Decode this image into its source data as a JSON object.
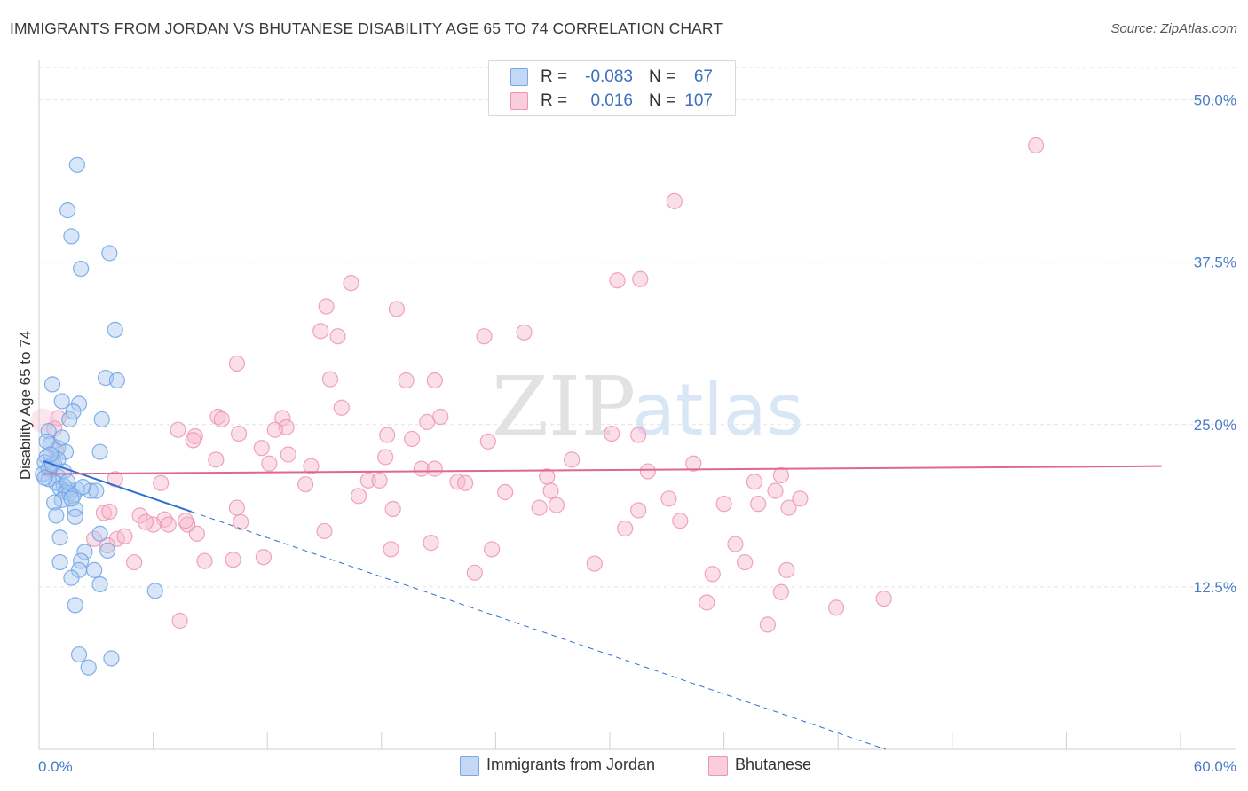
{
  "header": {
    "title": "IMMIGRANTS FROM JORDAN VS BHUTANESE DISABILITY AGE 65 TO 74 CORRELATION CHART",
    "source": "Source: ZipAtlas.com"
  },
  "legend_top": {
    "rows": [
      {
        "r_label": "R =",
        "r_value": "-0.083",
        "n_label": "N =",
        "n_value": "67",
        "color": "#a9c8f0"
      },
      {
        "r_label": "R =",
        "r_value": "0.016",
        "n_label": "N =",
        "n_value": "107",
        "color": "#f6b8cb"
      }
    ]
  },
  "legend_bottom": [
    {
      "label": "Immigrants from Jordan",
      "color": "#a9c8f0"
    },
    {
      "label": "Bhutanese",
      "color": "#f6b8cb"
    }
  ],
  "watermark": {
    "zip": "ZIP",
    "atlas": "atlas"
  },
  "chart_data": {
    "type": "scatter",
    "title": "IMMIGRANTS FROM JORDAN VS BHUTANESE DISABILITY AGE 65 TO 74 CORRELATION CHART",
    "xlabel": "",
    "ylabel": "Disability Age 65 to 74",
    "xlim": [
      0,
      60
    ],
    "ylim": [
      0,
      52.5
    ],
    "x_tick_labels": {
      "min": "0.0%",
      "max": "60.0%"
    },
    "y_ticks": [
      {
        "value": 12.5,
        "label": "12.5%"
      },
      {
        "value": 25,
        "label": "25.0%"
      },
      {
        "value": 37.5,
        "label": "37.5%"
      },
      {
        "value": 50,
        "label": "50.0%"
      }
    ],
    "grid": true,
    "series": [
      {
        "name": "Immigrants from Jordan",
        "color": "#6fa3e6",
        "fill": "#a9c8f0",
        "line_color": "#2e6fd1",
        "R": -0.083,
        "N": 67,
        "trend": {
          "x_start": 0.2,
          "y_start": 22.2,
          "x_solid_end": 8.0,
          "y_solid_end": 18.3,
          "x_dash_end": 44.5,
          "y_dash_end": 0.0
        },
        "points": [
          [
            2.0,
            45.0
          ],
          [
            1.5,
            41.5
          ],
          [
            1.7,
            39.5
          ],
          [
            3.7,
            38.2
          ],
          [
            2.2,
            37.0
          ],
          [
            4.0,
            32.3
          ],
          [
            3.5,
            28.6
          ],
          [
            4.1,
            28.4
          ],
          [
            0.7,
            28.1
          ],
          [
            1.2,
            26.8
          ],
          [
            2.1,
            26.6
          ],
          [
            1.6,
            25.4
          ],
          [
            3.3,
            25.4
          ],
          [
            1.8,
            26.0
          ],
          [
            0.5,
            24.5
          ],
          [
            0.6,
            23.5
          ],
          [
            1.0,
            23.2
          ],
          [
            3.2,
            22.9
          ],
          [
            0.4,
            22.5
          ],
          [
            0.8,
            22.0
          ],
          [
            0.3,
            22.1
          ],
          [
            0.6,
            21.7
          ],
          [
            0.2,
            21.2
          ],
          [
            0.5,
            21.6
          ],
          [
            1.0,
            21.0
          ],
          [
            0.9,
            20.5
          ],
          [
            1.3,
            20.3
          ],
          [
            1.5,
            20.0
          ],
          [
            1.1,
            20.1
          ],
          [
            2.0,
            20.0
          ],
          [
            1.4,
            19.8
          ],
          [
            1.6,
            19.7
          ],
          [
            1.8,
            19.5
          ],
          [
            1.2,
            19.2
          ],
          [
            0.8,
            19.0
          ],
          [
            2.7,
            19.9
          ],
          [
            3.0,
            19.9
          ],
          [
            1.9,
            18.5
          ],
          [
            0.9,
            18.0
          ],
          [
            1.9,
            17.9
          ],
          [
            3.2,
            16.6
          ],
          [
            1.1,
            16.3
          ],
          [
            2.4,
            15.2
          ],
          [
            3.6,
            15.3
          ],
          [
            1.1,
            14.4
          ],
          [
            2.2,
            14.5
          ],
          [
            2.1,
            13.8
          ],
          [
            2.9,
            13.8
          ],
          [
            1.7,
            13.2
          ],
          [
            3.2,
            12.7
          ],
          [
            6.1,
            12.2
          ],
          [
            1.9,
            11.1
          ],
          [
            2.1,
            7.3
          ],
          [
            3.8,
            7.0
          ],
          [
            2.6,
            6.3
          ],
          [
            0.5,
            20.8
          ],
          [
            1.4,
            22.9
          ],
          [
            0.7,
            21.9
          ],
          [
            1.0,
            22.3
          ],
          [
            1.3,
            21.4
          ],
          [
            0.4,
            23.7
          ],
          [
            0.6,
            22.7
          ],
          [
            1.5,
            20.6
          ],
          [
            2.3,
            20.2
          ],
          [
            1.7,
            19.3
          ],
          [
            0.3,
            20.9
          ],
          [
            1.2,
            24.0
          ]
        ]
      },
      {
        "name": "Bhutanese",
        "color": "#ef94b0",
        "fill": "#f6b8cb",
        "line_color": "#e0678f",
        "R": 0.016,
        "N": 107,
        "trend": {
          "x_start": 0.2,
          "y_start": 21.2,
          "x_end": 59.0,
          "y_end": 21.8
        },
        "points": [
          [
            52.4,
            46.5
          ],
          [
            33.4,
            42.2
          ],
          [
            16.4,
            35.9
          ],
          [
            30.4,
            36.1
          ],
          [
            31.6,
            36.2
          ],
          [
            15.1,
            34.1
          ],
          [
            18.8,
            33.9
          ],
          [
            14.8,
            32.2
          ],
          [
            15.7,
            31.8
          ],
          [
            23.4,
            31.8
          ],
          [
            25.5,
            32.1
          ],
          [
            10.4,
            29.7
          ],
          [
            15.3,
            28.5
          ],
          [
            19.3,
            28.4
          ],
          [
            20.8,
            28.4
          ],
          [
            15.9,
            26.3
          ],
          [
            9.4,
            25.6
          ],
          [
            9.6,
            25.4
          ],
          [
            12.8,
            25.5
          ],
          [
            7.3,
            24.6
          ],
          [
            8.2,
            24.1
          ],
          [
            10.5,
            24.3
          ],
          [
            13.0,
            24.8
          ],
          [
            18.3,
            24.2
          ],
          [
            19.6,
            23.9
          ],
          [
            20.4,
            25.2
          ],
          [
            21.1,
            25.6
          ],
          [
            23.6,
            23.7
          ],
          [
            30.1,
            24.3
          ],
          [
            31.5,
            24.2
          ],
          [
            8.1,
            23.8
          ],
          [
            11.7,
            23.2
          ],
          [
            12.4,
            24.6
          ],
          [
            13.1,
            22.7
          ],
          [
            18.2,
            22.5
          ],
          [
            20.1,
            21.6
          ],
          [
            20.8,
            21.6
          ],
          [
            28.0,
            22.3
          ],
          [
            9.3,
            22.3
          ],
          [
            12.1,
            22.0
          ],
          [
            14.3,
            21.8
          ],
          [
            22.0,
            20.6
          ],
          [
            26.7,
            21.0
          ],
          [
            32.0,
            21.4
          ],
          [
            34.4,
            22.0
          ],
          [
            37.6,
            20.6
          ],
          [
            38.7,
            19.9
          ],
          [
            40.0,
            19.3
          ],
          [
            39.0,
            21.1
          ],
          [
            17.3,
            20.7
          ],
          [
            17.9,
            20.7
          ],
          [
            22.4,
            20.5
          ],
          [
            24.5,
            19.8
          ],
          [
            26.9,
            19.9
          ],
          [
            6.4,
            20.5
          ],
          [
            4.0,
            20.8
          ],
          [
            14.0,
            20.4
          ],
          [
            16.8,
            19.5
          ],
          [
            10.4,
            18.6
          ],
          [
            18.6,
            18.5
          ],
          [
            26.3,
            18.6
          ],
          [
            27.2,
            18.8
          ],
          [
            31.5,
            18.4
          ],
          [
            33.1,
            19.3
          ],
          [
            36.0,
            18.9
          ],
          [
            37.8,
            18.9
          ],
          [
            39.4,
            18.6
          ],
          [
            5.3,
            18.0
          ],
          [
            6.6,
            17.7
          ],
          [
            7.8,
            17.3
          ],
          [
            6.0,
            17.3
          ],
          [
            5.6,
            17.5
          ],
          [
            3.4,
            18.2
          ],
          [
            3.7,
            18.3
          ],
          [
            2.9,
            16.2
          ],
          [
            4.1,
            16.2
          ],
          [
            4.5,
            16.4
          ],
          [
            7.7,
            17.6
          ],
          [
            10.6,
            17.5
          ],
          [
            15.0,
            16.8
          ],
          [
            8.3,
            16.6
          ],
          [
            30.8,
            17.0
          ],
          [
            33.7,
            17.6
          ],
          [
            6.8,
            17.3
          ],
          [
            3.6,
            15.7
          ],
          [
            20.6,
            15.9
          ],
          [
            23.8,
            15.4
          ],
          [
            36.6,
            15.8
          ],
          [
            18.5,
            15.4
          ],
          [
            5.0,
            14.4
          ],
          [
            8.7,
            14.5
          ],
          [
            10.2,
            14.6
          ],
          [
            11.8,
            14.8
          ],
          [
            29.2,
            14.3
          ],
          [
            35.4,
            13.5
          ],
          [
            37.1,
            14.4
          ],
          [
            39.3,
            13.8
          ],
          [
            22.9,
            13.6
          ],
          [
            39.0,
            12.1
          ],
          [
            44.4,
            11.6
          ],
          [
            41.9,
            10.9
          ],
          [
            35.1,
            11.3
          ],
          [
            38.3,
            9.6
          ],
          [
            7.4,
            9.9
          ],
          [
            1.0,
            25.5
          ],
          [
            0.8,
            24.7
          ],
          [
            0.9,
            23.0
          ]
        ]
      }
    ]
  }
}
